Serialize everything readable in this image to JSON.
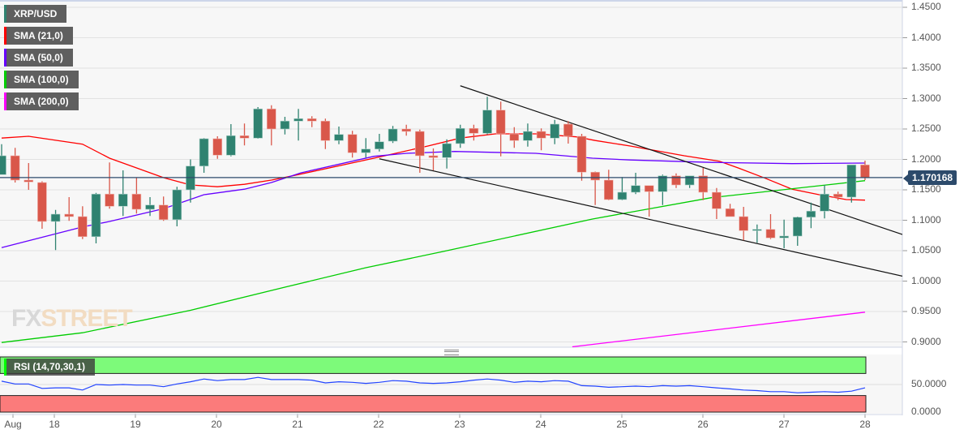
{
  "chart_data": {
    "type": "candlestick",
    "symbol": "XRP/USD",
    "timeframe_note": "6 candles per day",
    "x_labels": [
      "Aug",
      "18",
      "19",
      "20",
      "21",
      "22",
      "23",
      "24",
      "25",
      "26",
      "27",
      "28"
    ],
    "y_ticks": [
      "1.4500",
      "1.4000",
      "1.3500",
      "1.3000",
      "1.2500",
      "1.2000",
      "1.1500",
      "1.1000",
      "1.0500",
      "1.0000",
      "0.9500",
      "0.9000"
    ],
    "ylim": [
      0.895,
      1.462
    ],
    "grid": true,
    "current_price": "1.170168",
    "candles": [
      [
        1.175,
        1.225,
        1.175,
        1.206
      ],
      [
        1.206,
        1.219,
        1.162,
        1.166
      ],
      [
        1.166,
        1.194,
        1.15,
        1.163
      ],
      [
        1.162,
        1.164,
        1.086,
        1.098
      ],
      [
        1.098,
        1.117,
        1.051,
        1.11
      ],
      [
        1.11,
        1.138,
        1.099,
        1.106
      ],
      [
        1.106,
        1.123,
        1.069,
        1.073
      ],
      [
        1.073,
        1.145,
        1.062,
        1.143
      ],
      [
        1.143,
        1.195,
        1.119,
        1.123
      ],
      [
        1.123,
        1.182,
        1.107,
        1.143
      ],
      [
        1.143,
        1.17,
        1.111,
        1.118
      ],
      [
        1.118,
        1.138,
        1.107,
        1.125
      ],
      [
        1.125,
        1.139,
        1.099,
        1.101
      ],
      [
        1.101,
        1.155,
        1.09,
        1.15
      ],
      [
        1.15,
        1.2,
        1.129,
        1.189
      ],
      [
        1.189,
        1.235,
        1.178,
        1.234
      ],
      [
        1.234,
        1.238,
        1.201,
        1.207
      ],
      [
        1.207,
        1.258,
        1.205,
        1.239
      ],
      [
        1.239,
        1.259,
        1.223,
        1.235
      ],
      [
        1.235,
        1.286,
        1.234,
        1.283
      ],
      [
        1.283,
        1.289,
        1.223,
        1.25
      ],
      [
        1.25,
        1.27,
        1.241,
        1.263
      ],
      [
        1.263,
        1.283,
        1.231,
        1.267
      ],
      [
        1.267,
        1.271,
        1.253,
        1.263
      ],
      [
        1.263,
        1.267,
        1.217,
        1.231
      ],
      [
        1.231,
        1.254,
        1.225,
        1.241
      ],
      [
        1.241,
        1.247,
        1.203,
        1.211
      ],
      [
        1.211,
        1.235,
        1.203,
        1.217
      ],
      [
        1.217,
        1.242,
        1.213,
        1.229
      ],
      [
        1.23,
        1.255,
        1.227,
        1.25
      ],
      [
        1.25,
        1.257,
        1.239,
        1.246
      ],
      [
        1.246,
        1.249,
        1.178,
        1.206
      ],
      [
        1.206,
        1.218,
        1.182,
        1.203
      ],
      [
        1.203,
        1.233,
        1.185,
        1.226
      ],
      [
        1.226,
        1.257,
        1.219,
        1.251
      ],
      [
        1.251,
        1.257,
        1.231,
        1.243
      ],
      [
        1.243,
        1.303,
        1.241,
        1.281
      ],
      [
        1.281,
        1.295,
        1.205,
        1.242
      ],
      [
        1.242,
        1.253,
        1.219,
        1.231
      ],
      [
        1.231,
        1.259,
        1.221,
        1.246
      ],
      [
        1.246,
        1.251,
        1.215,
        1.235
      ],
      [
        1.235,
        1.265,
        1.225,
        1.258
      ],
      [
        1.258,
        1.263,
        1.226,
        1.238
      ],
      [
        1.238,
        1.242,
        1.165,
        1.179
      ],
      [
        1.179,
        1.18,
        1.125,
        1.166
      ],
      [
        1.166,
        1.183,
        1.133,
        1.134
      ],
      [
        1.134,
        1.171,
        1.133,
        1.146
      ],
      [
        1.146,
        1.178,
        1.143,
        1.157
      ],
      [
        1.157,
        1.157,
        1.106,
        1.147
      ],
      [
        1.147,
        1.175,
        1.125,
        1.173
      ],
      [
        1.173,
        1.177,
        1.153,
        1.158
      ],
      [
        1.158,
        1.173,
        1.153,
        1.173
      ],
      [
        1.173,
        1.186,
        1.133,
        1.146
      ],
      [
        1.146,
        1.153,
        1.102,
        1.119
      ],
      [
        1.119,
        1.127,
        1.106,
        1.106
      ],
      [
        1.106,
        1.122,
        1.067,
        1.083
      ],
      [
        1.083,
        1.093,
        1.063,
        1.085
      ],
      [
        1.085,
        1.11,
        1.069,
        1.071
      ],
      [
        1.071,
        1.101,
        1.054,
        1.074
      ],
      [
        1.074,
        1.106,
        1.058,
        1.105
      ],
      [
        1.105,
        1.129,
        1.087,
        1.115
      ],
      [
        1.115,
        1.158,
        1.103,
        1.143
      ],
      [
        1.143,
        1.147,
        1.133,
        1.138
      ],
      [
        1.138,
        1.191,
        1.129,
        1.191
      ],
      [
        1.191,
        1.198,
        1.166,
        1.17
      ]
    ],
    "series": [
      {
        "name": "SMA (21,0)",
        "color": "#ff0000",
        "points": [
          [
            0,
            1.235
          ],
          [
            2,
            1.238
          ],
          [
            6,
            1.225
          ],
          [
            8,
            1.202
          ],
          [
            10,
            1.186
          ],
          [
            12,
            1.17
          ],
          [
            14,
            1.158
          ],
          [
            16,
            1.155
          ],
          [
            18,
            1.159
          ],
          [
            20,
            1.166
          ],
          [
            22,
            1.175
          ],
          [
            27.6,
            1.202
          ],
          [
            31.6,
            1.222
          ],
          [
            34,
            1.235
          ],
          [
            36.6,
            1.242
          ],
          [
            39.6,
            1.242
          ],
          [
            42.6,
            1.237
          ],
          [
            44,
            1.231
          ],
          [
            46.6,
            1.222
          ],
          [
            50.6,
            1.206
          ],
          [
            53.2,
            1.197
          ],
          [
            54.6,
            1.186
          ],
          [
            56.6,
            1.169
          ],
          [
            58.6,
            1.151
          ],
          [
            60.6,
            1.142
          ],
          [
            62.6,
            1.134
          ],
          [
            64,
            1.133
          ]
        ]
      },
      {
        "name": "SMA (50,0)",
        "color": "#6600ff",
        "points": [
          [
            0,
            1.055
          ],
          [
            6,
            1.089
          ],
          [
            8,
            1.098
          ],
          [
            12,
            1.119
          ],
          [
            15,
            1.142
          ],
          [
            18,
            1.151
          ],
          [
            20,
            1.162
          ],
          [
            22.2,
            1.178
          ],
          [
            27.6,
            1.205
          ],
          [
            30,
            1.21
          ],
          [
            33.6,
            1.213
          ],
          [
            39.6,
            1.21
          ],
          [
            43.8,
            1.202
          ],
          [
            46.6,
            1.199
          ],
          [
            52.6,
            1.195
          ],
          [
            58.6,
            1.193
          ],
          [
            64,
            1.194
          ]
        ]
      },
      {
        "name": "SMA (100,0)",
        "color": "#00cc00",
        "points": [
          [
            0,
            0.899
          ],
          [
            6,
            0.915
          ],
          [
            14,
            0.952
          ],
          [
            21,
            0.99
          ],
          [
            27,
            1.022
          ],
          [
            32.8,
            1.049
          ],
          [
            43.8,
            1.102
          ],
          [
            52.6,
            1.137
          ],
          [
            64,
            1.165
          ]
        ]
      },
      {
        "name": "SMA (200,0)",
        "color": "#ff00ff",
        "points": [
          [
            42.3,
            0.892
          ],
          [
            64,
            0.949
          ]
        ]
      }
    ],
    "trendlines": [
      {
        "name": "upper",
        "points": [
          [
            34,
            1.321
          ],
          [
            67,
            1.075
          ]
        ]
      },
      {
        "name": "lower",
        "points": [
          [
            28,
            1.201
          ],
          [
            67,
            1.007
          ]
        ]
      }
    ],
    "rsi": {
      "label": "RSI (14,70,30,1)",
      "y_ticks": [
        "50.0000",
        "0.0000"
      ],
      "overbought": 70,
      "oversold": 30,
      "values": [
        56,
        51,
        51,
        43,
        44,
        44,
        40,
        50,
        49,
        50,
        49,
        49,
        46,
        51,
        55,
        60,
        57,
        59,
        59,
        63,
        59,
        59,
        59,
        58,
        53,
        55,
        54,
        52,
        54,
        57,
        56,
        53,
        52,
        53,
        55,
        58,
        60,
        58,
        54,
        56,
        55,
        57,
        56,
        48,
        47,
        45,
        46,
        47,
        46,
        48,
        47,
        48,
        46,
        44,
        42,
        40,
        39,
        37,
        37,
        35,
        36,
        37,
        36,
        38,
        44,
        48,
        50,
        53,
        57
      ]
    }
  },
  "legend": {
    "symbol": "XRP/USD",
    "sma21": "SMA (21,0)",
    "sma50": "SMA (50,0)",
    "sma100": "SMA (100,0)",
    "sma200": "SMA (200,0)"
  },
  "colors": {
    "up": "#2f8270",
    "down": "#d9574a",
    "price_line": "#2c4a6b",
    "background": "#f7f7f7"
  },
  "watermark": {
    "text_a": "FX",
    "text_b": "STREET"
  }
}
